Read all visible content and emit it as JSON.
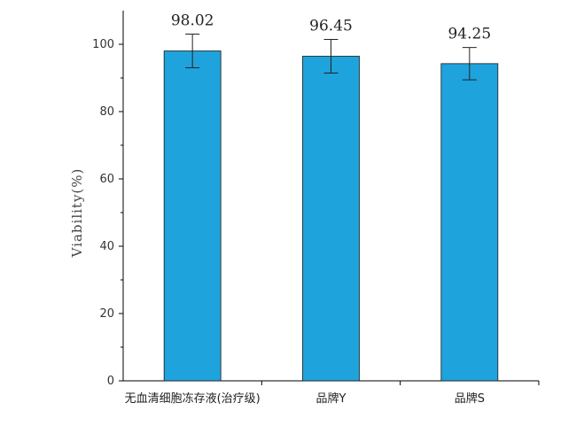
{
  "chart_data": {
    "type": "bar",
    "title": "",
    "xlabel": "",
    "ylabel": "Viability(%)",
    "ylim": [
      0,
      100
    ],
    "yticks": [
      0,
      20,
      40,
      60,
      80,
      100
    ],
    "grid": false,
    "categories": [
      "无血清细胞冻存液(治疗级)",
      "品牌Y",
      "品牌S"
    ],
    "values": [
      98.02,
      96.45,
      94.25
    ],
    "value_labels": [
      "98.02",
      "96.45",
      "94.25"
    ],
    "error_bars": [
      5.0,
      5.0,
      4.8
    ],
    "bar_color": "#1ea3dc"
  }
}
